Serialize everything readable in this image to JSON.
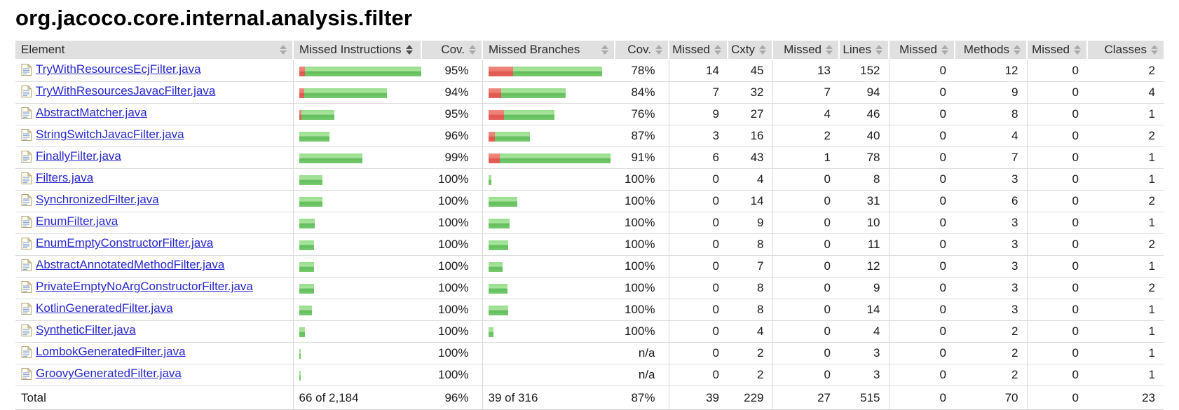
{
  "page_title": "org.jacoco.core.internal.analysis.filter",
  "colors": {
    "bar_green": "#75cb6e",
    "bar_red": "#e2645b",
    "header_bg": "#e0e0e0",
    "link_blue": "#2828cc"
  },
  "icons": {
    "file": "source-file-icon",
    "sort": "sort-arrows-icon"
  },
  "table": {
    "sorted_column": "Missed Instructions",
    "columns": [
      {
        "label": "Element"
      },
      {
        "label": "Missed Instructions"
      },
      {
        "label": "Cov."
      },
      {
        "label": "Missed Branches"
      },
      {
        "label": "Cov."
      },
      {
        "label": "Missed"
      },
      {
        "label": "Cxty"
      },
      {
        "label": "Missed"
      },
      {
        "label": "Lines"
      },
      {
        "label": "Missed"
      },
      {
        "label": "Methods"
      },
      {
        "label": "Missed"
      },
      {
        "label": "Classes"
      }
    ],
    "rows": [
      {
        "element": "TryWithResourcesEcjFilter.java",
        "instr_bar": [
          8,
          167
        ],
        "instr_cov": "95%",
        "branch_bar": [
          35,
          127
        ],
        "branch_cov": "78%",
        "missed": "14",
        "cxty": "45",
        "missed_lines": "13",
        "lines": "152",
        "missed_methods": "0",
        "methods": "12",
        "missed_classes": "0",
        "classes": "2"
      },
      {
        "element": "TryWithResourcesJavacFilter.java",
        "instr_bar": [
          7,
          118
        ],
        "instr_cov": "94%",
        "branch_bar": [
          18,
          92
        ],
        "branch_cov": "84%",
        "missed": "7",
        "cxty": "32",
        "missed_lines": "7",
        "lines": "94",
        "missed_methods": "0",
        "methods": "9",
        "missed_classes": "0",
        "classes": "4"
      },
      {
        "element": "AbstractMatcher.java",
        "instr_bar": [
          3,
          47
        ],
        "instr_cov": "95%",
        "branch_bar": [
          22,
          72
        ],
        "branch_cov": "76%",
        "missed": "9",
        "cxty": "27",
        "missed_lines": "4",
        "lines": "46",
        "missed_methods": "0",
        "methods": "8",
        "missed_classes": "0",
        "classes": "1"
      },
      {
        "element": "StringSwitchJavacFilter.java",
        "instr_bar": [
          0,
          43
        ],
        "instr_cov": "96%",
        "branch_bar": [
          9,
          50
        ],
        "branch_cov": "87%",
        "missed": "3",
        "cxty": "16",
        "missed_lines": "2",
        "lines": "40",
        "missed_methods": "0",
        "methods": "4",
        "missed_classes": "0",
        "classes": "2"
      },
      {
        "element": "FinallyFilter.java",
        "instr_bar": [
          0,
          90
        ],
        "instr_cov": "99%",
        "branch_bar": [
          16,
          158
        ],
        "branch_cov": "91%",
        "missed": "6",
        "cxty": "43",
        "missed_lines": "1",
        "lines": "78",
        "missed_methods": "0",
        "methods": "7",
        "missed_classes": "0",
        "classes": "1"
      },
      {
        "element": "Filters.java",
        "instr_bar": [
          0,
          33
        ],
        "instr_cov": "100%",
        "branch_bar": [
          0,
          4
        ],
        "branch_cov": "100%",
        "missed": "0",
        "cxty": "4",
        "missed_lines": "0",
        "lines": "8",
        "missed_methods": "0",
        "methods": "3",
        "missed_classes": "0",
        "classes": "1"
      },
      {
        "element": "SynchronizedFilter.java",
        "instr_bar": [
          0,
          33
        ],
        "instr_cov": "100%",
        "branch_bar": [
          0,
          41
        ],
        "branch_cov": "100%",
        "missed": "0",
        "cxty": "14",
        "missed_lines": "0",
        "lines": "31",
        "missed_methods": "0",
        "methods": "6",
        "missed_classes": "0",
        "classes": "2"
      },
      {
        "element": "EnumFilter.java",
        "instr_bar": [
          0,
          22
        ],
        "instr_cov": "100%",
        "branch_bar": [
          0,
          30
        ],
        "branch_cov": "100%",
        "missed": "0",
        "cxty": "9",
        "missed_lines": "0",
        "lines": "10",
        "missed_methods": "0",
        "methods": "3",
        "missed_classes": "0",
        "classes": "1"
      },
      {
        "element": "EnumEmptyConstructorFilter.java",
        "instr_bar": [
          0,
          21
        ],
        "instr_cov": "100%",
        "branch_bar": [
          0,
          28
        ],
        "branch_cov": "100%",
        "missed": "0",
        "cxty": "8",
        "missed_lines": "0",
        "lines": "11",
        "missed_methods": "0",
        "methods": "3",
        "missed_classes": "0",
        "classes": "2"
      },
      {
        "element": "AbstractAnnotatedMethodFilter.java",
        "instr_bar": [
          0,
          21
        ],
        "instr_cov": "100%",
        "branch_bar": [
          0,
          20
        ],
        "branch_cov": "100%",
        "missed": "0",
        "cxty": "7",
        "missed_lines": "0",
        "lines": "12",
        "missed_methods": "0",
        "methods": "3",
        "missed_classes": "0",
        "classes": "1"
      },
      {
        "element": "PrivateEmptyNoArgConstructorFilter.java",
        "instr_bar": [
          0,
          21
        ],
        "instr_cov": "100%",
        "branch_bar": [
          0,
          27
        ],
        "branch_cov": "100%",
        "missed": "0",
        "cxty": "8",
        "missed_lines": "0",
        "lines": "9",
        "missed_methods": "0",
        "methods": "3",
        "missed_classes": "0",
        "classes": "2"
      },
      {
        "element": "KotlinGeneratedFilter.java",
        "instr_bar": [
          0,
          18
        ],
        "instr_cov": "100%",
        "branch_bar": [
          0,
          28
        ],
        "branch_cov": "100%",
        "missed": "0",
        "cxty": "8",
        "missed_lines": "0",
        "lines": "14",
        "missed_methods": "0",
        "methods": "3",
        "missed_classes": "0",
        "classes": "1"
      },
      {
        "element": "SyntheticFilter.java",
        "instr_bar": [
          0,
          8
        ],
        "instr_cov": "100%",
        "branch_bar": [
          0,
          7
        ],
        "branch_cov": "100%",
        "missed": "0",
        "cxty": "4",
        "missed_lines": "0",
        "lines": "4",
        "missed_methods": "0",
        "methods": "2",
        "missed_classes": "0",
        "classes": "1"
      },
      {
        "element": "LombokGeneratedFilter.java",
        "instr_bar": [
          0,
          2
        ],
        "instr_cov": "100%",
        "branch_bar": [
          0,
          0
        ],
        "branch_cov": "n/a",
        "missed": "0",
        "cxty": "2",
        "missed_lines": "0",
        "lines": "3",
        "missed_methods": "0",
        "methods": "2",
        "missed_classes": "0",
        "classes": "1"
      },
      {
        "element": "GroovyGeneratedFilter.java",
        "instr_bar": [
          0,
          2
        ],
        "instr_cov": "100%",
        "branch_bar": [
          0,
          0
        ],
        "branch_cov": "n/a",
        "missed": "0",
        "cxty": "2",
        "missed_lines": "0",
        "lines": "3",
        "missed_methods": "0",
        "methods": "2",
        "missed_classes": "0",
        "classes": "1"
      }
    ],
    "total": {
      "label": "Total",
      "instructions": "66 of 2,184",
      "instr_cov": "96%",
      "branches": "39 of 316",
      "branch_cov": "87%",
      "missed": "39",
      "cxty": "229",
      "missed_lines": "27",
      "lines": "515",
      "missed_methods": "0",
      "methods": "70",
      "missed_classes": "0",
      "classes": "23"
    }
  }
}
